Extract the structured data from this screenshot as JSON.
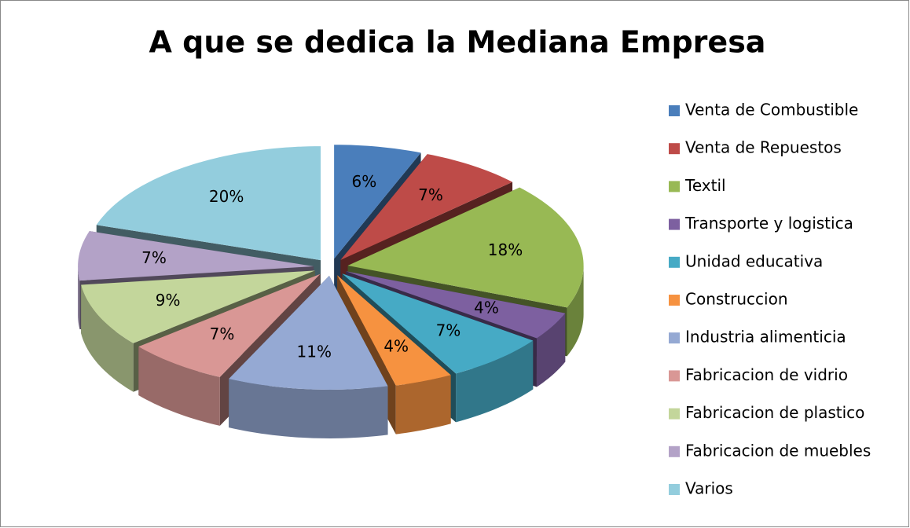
{
  "chart_data": {
    "type": "pie",
    "title": "A que se dedica la Mediana Empresa",
    "categories": [
      "Venta de Combustible",
      "Venta de Repuestos",
      "Textil",
      "Transporte y logistica",
      "Unidad educativa",
      "Construccion",
      "Industria alimenticia",
      "Fabricacion de vidrio",
      "Fabricacion de plastico",
      "Fabricacion de muebles",
      "Varios"
    ],
    "values": [
      6,
      7,
      18,
      4,
      7,
      4,
      11,
      7,
      9,
      7,
      20
    ],
    "value_labels": [
      "6%",
      "7%",
      "18%",
      "4%",
      "7%",
      "4%",
      "11%",
      "7%",
      "9%",
      "7%",
      "20%"
    ],
    "colors": [
      "#4a7ebb",
      "#be4b48",
      "#98b954",
      "#7d60a0",
      "#46aac5",
      "#f69240",
      "#95a9d3",
      "#d99795",
      "#c3d69b",
      "#b3a2c7",
      "#93cddd"
    ],
    "legend": "right"
  }
}
